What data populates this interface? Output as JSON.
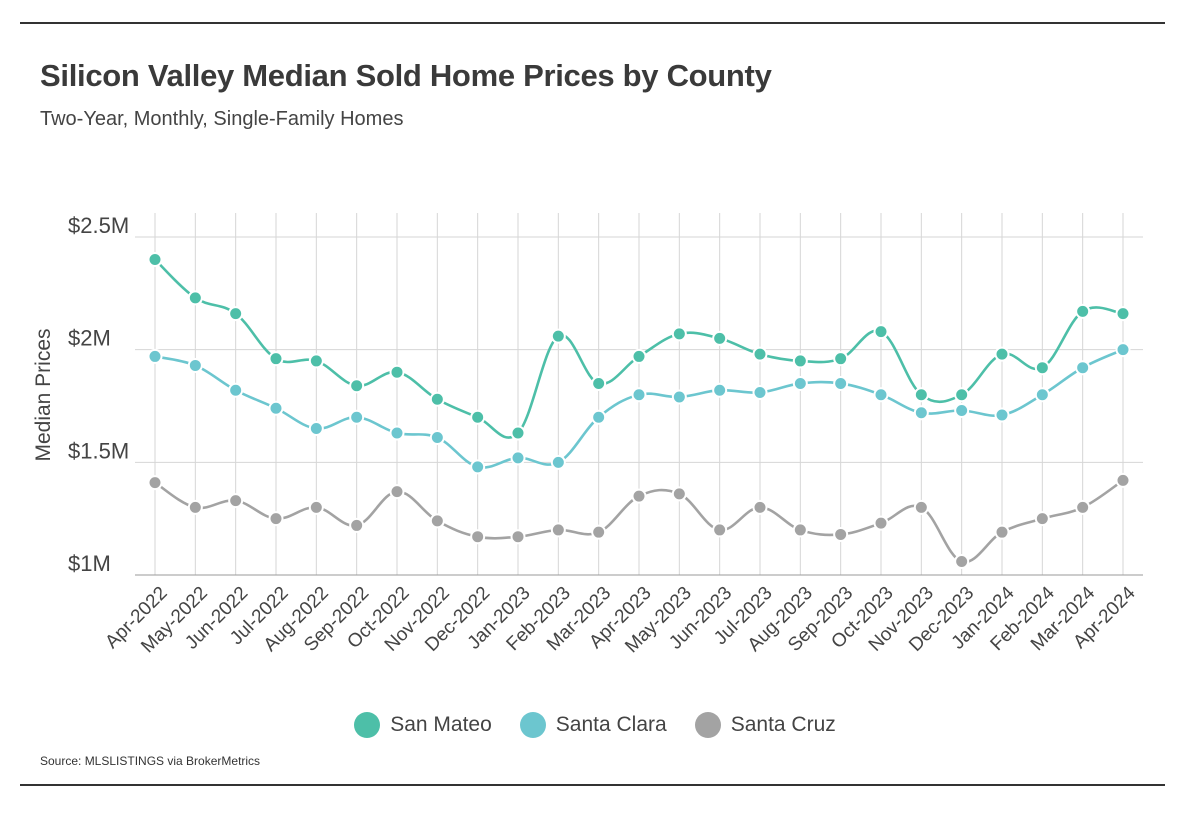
{
  "header": {
    "title": "Silicon Valley Median Sold Home Prices by County",
    "subtitle": "Two-Year, Monthly, Single-Family Homes"
  },
  "source": "Source:  MLSLISTINGS via BrokerMetrics",
  "chart_data": {
    "type": "line",
    "ylabel": "Median Prices",
    "ylim": [
      1000000,
      2500000
    ],
    "yticks": [
      {
        "value": 1000000,
        "label": "$1M"
      },
      {
        "value": 1500000,
        "label": "$1.5M"
      },
      {
        "value": 2000000,
        "label": "$2M"
      },
      {
        "value": 2500000,
        "label": "$2.5M"
      }
    ],
    "grid": true,
    "legend_position": "bottom",
    "categories": [
      "Apr-2022",
      "May-2022",
      "Jun-2022",
      "Jul-2022",
      "Aug-2022",
      "Sep-2022",
      "Oct-2022",
      "Nov-2022",
      "Dec-2022",
      "Jan-2023",
      "Feb-2023",
      "Mar-2023",
      "Apr-2023",
      "May-2023",
      "Jun-2023",
      "Jul-2023",
      "Aug-2023",
      "Sep-2023",
      "Oct-2023",
      "Nov-2023",
      "Dec-2023",
      "Jan-2024",
      "Feb-2024",
      "Mar-2024",
      "Apr-2024"
    ],
    "series": [
      {
        "name": "San Mateo",
        "color": "#4dbfa8",
        "values": [
          2400000,
          2230000,
          2160000,
          1960000,
          1950000,
          1840000,
          1900000,
          1780000,
          1700000,
          1630000,
          2060000,
          1850000,
          1970000,
          2070000,
          2050000,
          1980000,
          1950000,
          1960000,
          2080000,
          1800000,
          1800000,
          1980000,
          1920000,
          2170000,
          2160000
        ]
      },
      {
        "name": "Santa Clara",
        "color": "#6cc6cf",
        "values": [
          1970000,
          1930000,
          1820000,
          1740000,
          1650000,
          1700000,
          1630000,
          1610000,
          1480000,
          1520000,
          1500000,
          1700000,
          1800000,
          1790000,
          1820000,
          1810000,
          1850000,
          1850000,
          1800000,
          1720000,
          1730000,
          1710000,
          1800000,
          1920000,
          2000000
        ]
      },
      {
        "name": "Santa Cruz",
        "color": "#a3a3a3",
        "values": [
          1410000,
          1300000,
          1330000,
          1250000,
          1300000,
          1220000,
          1370000,
          1240000,
          1170000,
          1170000,
          1200000,
          1190000,
          1350000,
          1360000,
          1200000,
          1300000,
          1200000,
          1180000,
          1230000,
          1300000,
          1060000,
          1190000,
          1250000,
          1300000,
          1420000
        ]
      }
    ]
  }
}
